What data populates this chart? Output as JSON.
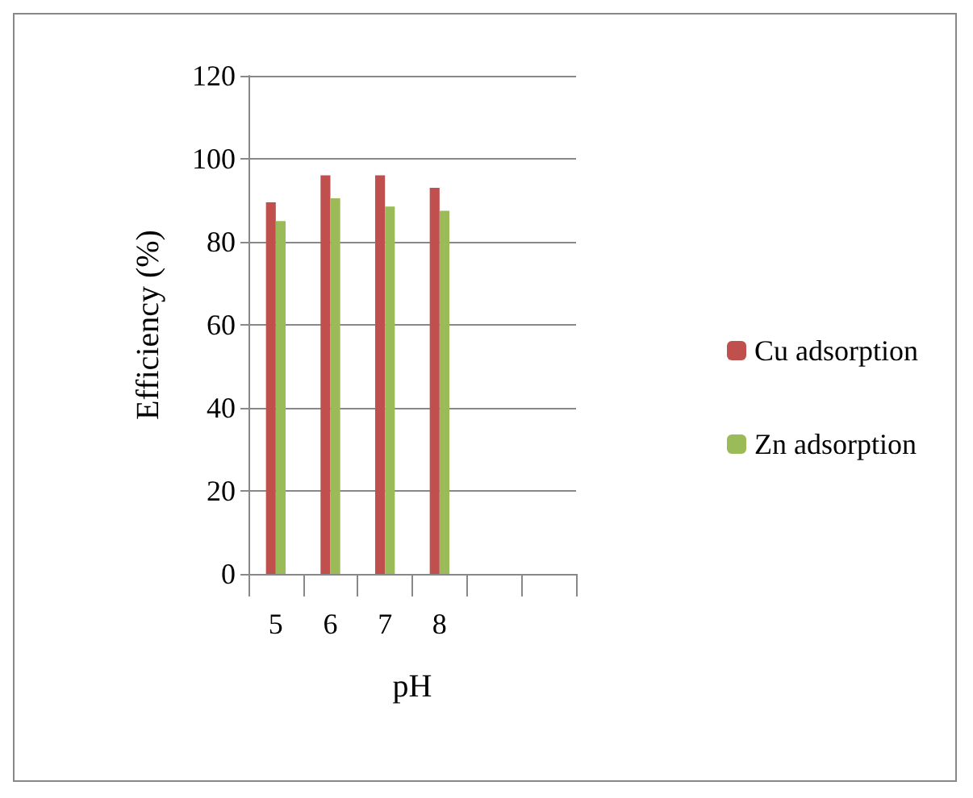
{
  "chart_data": {
    "type": "bar",
    "xlabel": "pH",
    "ylabel": "Efficiency (%)",
    "categories": [
      "5",
      "6",
      "7",
      "8",
      null,
      null
    ],
    "series": [
      {
        "name": "Cu adsorption",
        "color": "#c0504d",
        "values": [
          89.5,
          96,
          96,
          93,
          null,
          null
        ]
      },
      {
        "name": "Zn adsorption",
        "color": "#9bbb59",
        "values": [
          85,
          90.5,
          88.5,
          87.5,
          null,
          null
        ]
      }
    ],
    "ylim": [
      0,
      120
    ],
    "yticks": [
      0,
      20,
      40,
      60,
      80,
      100,
      120
    ],
    "grid": "y",
    "legend": "right"
  }
}
